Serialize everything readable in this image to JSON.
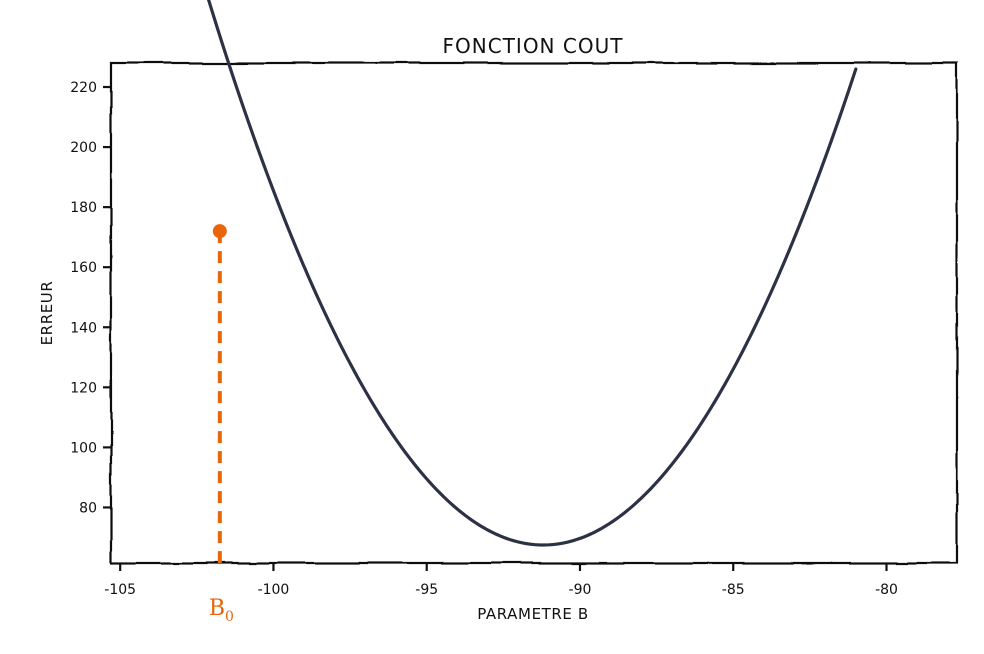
{
  "chart_data": {
    "type": "line",
    "title": "FONCTION COUT",
    "xlabel": "PARAMETRE B",
    "ylabel": "ERREUR",
    "xlim": [
      -105.3,
      -77.7
    ],
    "ylim": [
      61.5,
      228
    ],
    "xticks": [
      -105,
      -100,
      -95,
      -90,
      -85,
      -80
    ],
    "xtick_labels": [
      "-105",
      "-100",
      "-95",
      "-90",
      "-85",
      "-80"
    ],
    "yticks": [
      80,
      100,
      120,
      140,
      160,
      180,
      200,
      220
    ],
    "ytick_labels": [
      "80",
      "100",
      "120",
      "140",
      "160",
      "180",
      "200",
      "220"
    ],
    "grid": false,
    "curve": {
      "form": "quadratic",
      "x_range": [
        -104,
        -81
      ],
      "vertex_x": -91.2,
      "vertex_y": 67.5,
      "end_y": 226,
      "color": "#2b3245"
    },
    "marker": {
      "label_main": "B",
      "label_sub": "0",
      "x": -101.75,
      "y": 172,
      "color": "#e8650a",
      "style": "dashed vertical line to x-axis"
    }
  }
}
